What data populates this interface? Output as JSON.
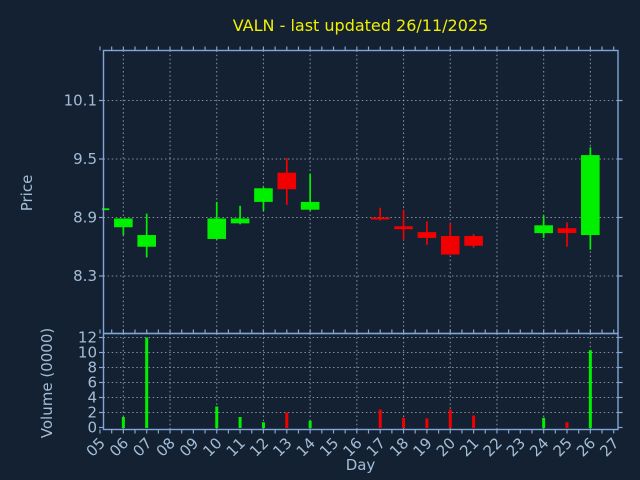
{
  "title": {
    "text": "VALN - last updated 26/11/2025"
  },
  "axes": {
    "xlabel": "Day",
    "price_ylabel": "Price",
    "volume_ylabel": "Volume (0000)"
  },
  "chart_data": {
    "type": "candlestick",
    "title": "VALN - last updated 26/11/2025",
    "xlabel": "Day",
    "panels": [
      "price",
      "volume"
    ],
    "x_tick_labels": [
      "05",
      "06",
      "07",
      "08",
      "09",
      "10",
      "11",
      "12",
      "13",
      "14",
      "15",
      "16",
      "17",
      "18",
      "19",
      "20",
      "21",
      "22",
      "23",
      "24",
      "25",
      "26",
      "27"
    ],
    "price_yticks": [
      8.3,
      8.9,
      9.5,
      10.1
    ],
    "price_ylim": [
      7.71,
      10.61
    ],
    "volume_yticks": [
      0,
      2,
      4,
      6,
      8,
      10,
      12
    ],
    "volume_gridlines": [
      2,
      4,
      6,
      8,
      10,
      12
    ],
    "volume_ylim": [
      0,
      12.6
    ],
    "xlim_days": [
      4.85,
      27.2
    ],
    "grid_days": [
      6,
      8,
      10,
      12,
      14,
      16,
      18,
      20,
      22,
      24,
      26
    ],
    "grid_style": "dotted",
    "legend": "none",
    "candles": [
      {
        "day": 5,
        "open": 8.98,
        "high": 8.99,
        "low": 8.97,
        "close": 8.99,
        "volume": 0.1
      },
      {
        "day": 6,
        "open": 8.8,
        "high": 8.89,
        "low": 8.72,
        "close": 8.89,
        "volume": 1.4
      },
      {
        "day": 7,
        "open": 8.6,
        "high": 8.94,
        "low": 8.49,
        "close": 8.72,
        "volume": 12.0
      },
      {
        "day": 10,
        "open": 8.68,
        "high": 9.06,
        "low": 8.67,
        "close": 8.89,
        "volume": 2.8
      },
      {
        "day": 11,
        "open": 8.84,
        "high": 9.02,
        "low": 8.83,
        "close": 8.89,
        "volume": 1.4
      },
      {
        "day": 12,
        "open": 9.06,
        "high": 9.21,
        "low": 8.97,
        "close": 9.2,
        "volume": 0.7
      },
      {
        "day": 13,
        "open": 9.36,
        "high": 9.51,
        "low": 9.03,
        "close": 9.19,
        "volume": 2.0
      },
      {
        "day": 14,
        "open": 8.98,
        "high": 9.35,
        "low": 8.97,
        "close": 9.06,
        "volume": 0.9
      },
      {
        "day": 17,
        "open": 8.9,
        "high": 9.0,
        "low": 8.87,
        "close": 8.88,
        "volume": 2.4
      },
      {
        "day": 18,
        "open": 8.81,
        "high": 8.98,
        "low": 8.67,
        "close": 8.78,
        "volume": 1.3
      },
      {
        "day": 19,
        "open": 8.75,
        "high": 8.86,
        "low": 8.62,
        "close": 8.69,
        "volume": 1.2
      },
      {
        "day": 20,
        "open": 8.71,
        "high": 8.84,
        "low": 8.52,
        "close": 8.52,
        "volume": 2.4
      },
      {
        "day": 21,
        "open": 8.71,
        "high": 8.73,
        "low": 8.59,
        "close": 8.61,
        "volume": 1.6
      },
      {
        "day": 24,
        "open": 8.74,
        "high": 8.92,
        "low": 8.69,
        "close": 8.82,
        "volume": 1.3
      },
      {
        "day": 25,
        "open": 8.79,
        "high": 8.85,
        "low": 8.6,
        "close": 8.74,
        "volume": 0.7
      },
      {
        "day": 26,
        "open": 8.72,
        "high": 9.62,
        "low": 8.57,
        "close": 9.54,
        "volume": 10.3
      }
    ],
    "colors": {
      "up": "#00f000",
      "down": "#f20000",
      "background": "#142133",
      "spine": "#7fa6d4",
      "tick_label": "#a3bdd6",
      "grid": "#b6bcc6",
      "title": "#f0f000"
    }
  }
}
